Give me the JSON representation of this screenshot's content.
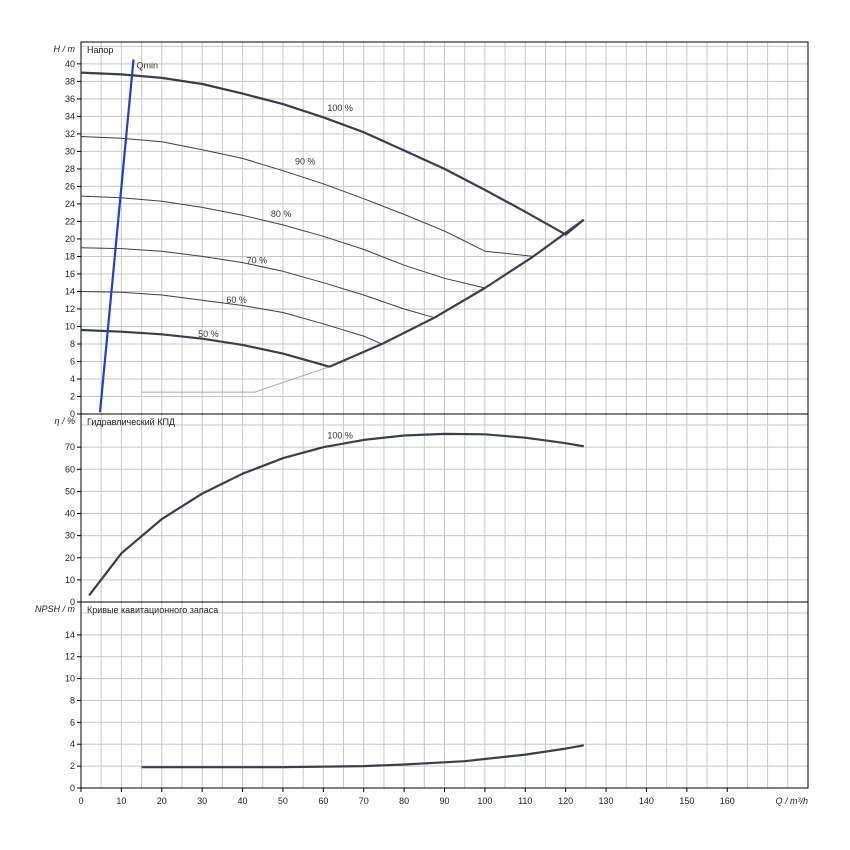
{
  "chart_data": [
    {
      "type": "line",
      "title": "Напор",
      "ylabel_symbol": "H",
      "ylabel_unit": "/ m",
      "xlim": [
        0,
        180
      ],
      "ylim": [
        0,
        42.5
      ],
      "yticks": [
        0,
        2,
        4,
        6,
        8,
        10,
        12,
        14,
        16,
        18,
        20,
        22,
        24,
        26,
        28,
        30,
        32,
        34,
        36,
        38,
        40
      ],
      "colors": {
        "curve": "#3a3f4b",
        "qmin": "#1f3fd1",
        "thin": "#3a3f4b",
        "faint": "#aaaaaa"
      },
      "series": [
        {
          "name": "100 %",
          "label_at": [
            61,
            34.6
          ],
          "x": [
            0,
            10,
            20,
            30,
            40,
            50,
            60,
            70,
            80,
            90,
            100,
            110,
            120,
            124.5
          ],
          "y": [
            39,
            38.8,
            38.4,
            37.7,
            36.6,
            35.4,
            33.9,
            32.2,
            30.1,
            28.0,
            25.6,
            23.1,
            20.5,
            22.2
          ],
          "bold": true
        },
        {
          "name": "90 %",
          "label_at": [
            53,
            28.5
          ],
          "x": [
            0,
            10,
            20,
            30,
            40,
            50,
            60,
            70,
            80,
            90,
            100,
            112
          ],
          "y": [
            31.7,
            31.5,
            31.1,
            30.2,
            29.2,
            27.8,
            26.3,
            24.6,
            22.8,
            20.9,
            18.6,
            18.0
          ],
          "bold": false
        },
        {
          "name": "80 %",
          "label_at": [
            47,
            22.5
          ],
          "x": [
            0,
            10,
            20,
            30,
            40,
            50,
            60,
            70,
            80,
            90,
            100
          ],
          "y": [
            24.9,
            24.7,
            24.3,
            23.6,
            22.7,
            21.6,
            20.3,
            18.8,
            17.0,
            15.5,
            14.4
          ],
          "bold": false
        },
        {
          "name": "70 %",
          "label_at": [
            41,
            17.2
          ],
          "x": [
            0,
            10,
            20,
            30,
            40,
            50,
            60,
            70,
            80,
            87.5
          ],
          "y": [
            19.0,
            18.9,
            18.6,
            18.0,
            17.3,
            16.3,
            15.0,
            13.6,
            12.0,
            11.0
          ],
          "bold": false
        },
        {
          "name": "60 %",
          "label_at": [
            36,
            12.7
          ],
          "x": [
            0,
            10,
            20,
            30,
            40,
            50,
            60,
            70,
            74.5
          ],
          "y": [
            14.0,
            13.9,
            13.6,
            13.0,
            12.4,
            11.6,
            10.3,
            8.9,
            8.0
          ],
          "bold": false
        },
        {
          "name": "50 %",
          "label_at": [
            29,
            8.8
          ],
          "x": [
            0,
            10,
            20,
            30,
            40,
            50,
            61.5
          ],
          "y": [
            9.6,
            9.4,
            9.1,
            8.6,
            7.9,
            6.9,
            5.4
          ],
          "bold": true
        }
      ],
      "envelope": {
        "x": [
          61.5,
          74.5,
          87.5,
          100,
          112,
          124.5
        ],
        "y": [
          5.4,
          8.0,
          11.0,
          14.4,
          18.0,
          22.2
        ]
      },
      "faint_line": {
        "x": [
          15,
          43,
          61.5
        ],
        "y": [
          2.5,
          2.5,
          5.4
        ]
      },
      "qmin": {
        "label": "Qmin",
        "x": [
          4.7,
          13
        ],
        "y": [
          0.2,
          40.5
        ]
      }
    },
    {
      "type": "line",
      "title": "Гидравлический КПД",
      "ylabel_symbol": "η",
      "ylabel_unit": "/ %",
      "xlim": [
        0,
        180
      ],
      "ylim": [
        0,
        85
      ],
      "yticks": [
        0,
        10,
        20,
        30,
        40,
        50,
        60,
        70
      ],
      "series": [
        {
          "name": "100 %",
          "label_at": [
            61,
            74.0
          ],
          "x": [
            2,
            10,
            20,
            30,
            40,
            50,
            60,
            70,
            80,
            90,
            100,
            110,
            120,
            124.5
          ],
          "y": [
            3,
            22,
            37.5,
            49,
            58,
            65,
            70,
            73.3,
            75.3,
            76,
            75.8,
            74.3,
            71.8,
            70.4
          ],
          "bold": true
        }
      ]
    },
    {
      "type": "line",
      "title": "Кривые кавитационного запаса",
      "ylabel_symbol": "NPSH",
      "ylabel_unit": "/ m",
      "xlabel_symbol": "Q",
      "xlabel_unit": "/ m³/h",
      "xlim": [
        0,
        180
      ],
      "ylim": [
        0,
        17
      ],
      "yticks": [
        0,
        2,
        4,
        6,
        8,
        10,
        12,
        14
      ],
      "xticks": [
        0,
        10,
        20,
        30,
        40,
        50,
        60,
        70,
        80,
        90,
        100,
        110,
        120,
        130,
        140,
        150,
        160
      ],
      "series": [
        {
          "x": [
            15,
            30,
            50,
            70,
            80,
            95,
            110,
            120,
            124.5
          ],
          "y": [
            1.9,
            1.9,
            1.9,
            2.0,
            2.15,
            2.45,
            3.05,
            3.6,
            3.9
          ],
          "bold": true
        }
      ]
    }
  ]
}
